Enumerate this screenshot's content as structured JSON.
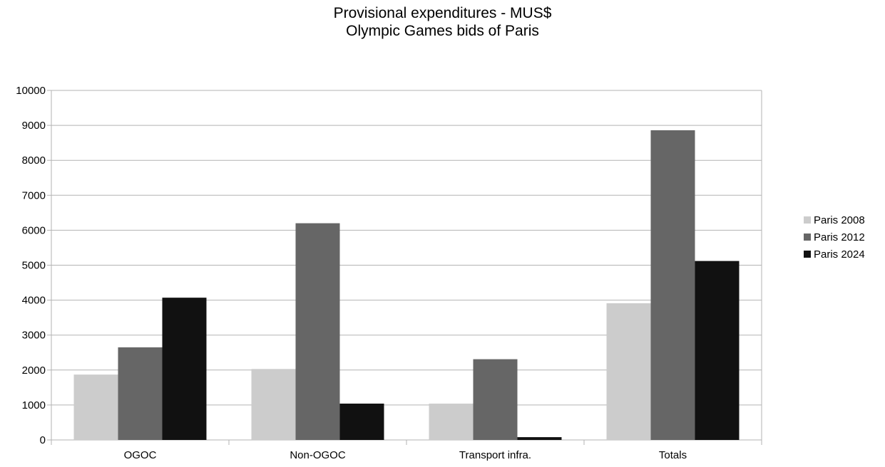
{
  "chart_data": {
    "type": "bar",
    "title": "Provisional expenditures - MUS$",
    "subtitle": "Olympic Games bids of Paris",
    "categories": [
      "OGOC",
      "Non-OGOC",
      "Transport infra.",
      "Totals"
    ],
    "series": [
      {
        "name": "Paris 2008",
        "color": "#cccccc",
        "values": [
          1870,
          2030,
          1040,
          3910
        ]
      },
      {
        "name": "Paris 2012",
        "color": "#666666",
        "values": [
          2650,
          6200,
          2310,
          8860
        ]
      },
      {
        "name": "Paris 2024",
        "color": "#111111",
        "values": [
          4070,
          1040,
          80,
          5120
        ]
      }
    ],
    "ylim": [
      0,
      10000
    ],
    "yticks": [
      "0",
      "1000",
      "2000",
      "3000",
      "4000",
      "5000",
      "6000",
      "7000",
      "8000",
      "9000",
      "10000"
    ],
    "grid": true,
    "legend_position": "right"
  }
}
